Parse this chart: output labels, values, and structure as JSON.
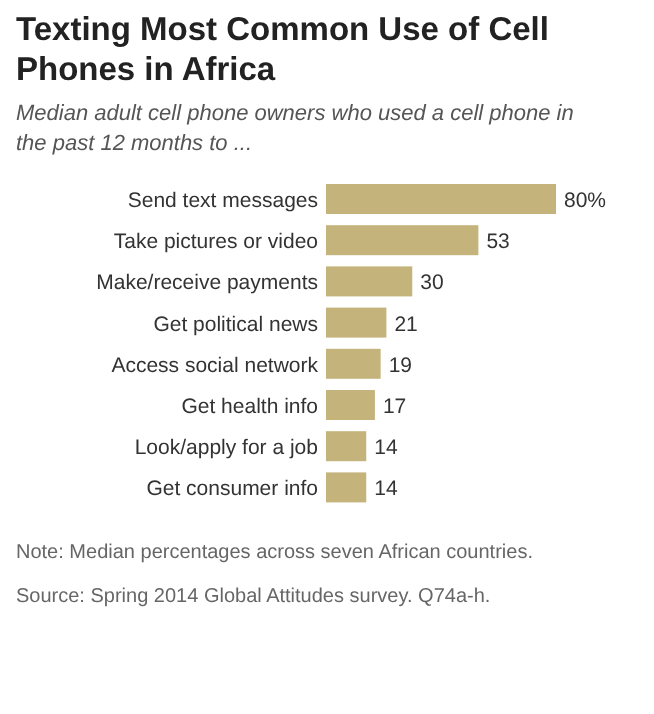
{
  "chart_data": {
    "type": "bar",
    "orientation": "horizontal",
    "title": "Texting Most Common Use of Cell Phones in Africa",
    "subtitle": "Median adult cell phone owners who used a cell phone in the past 12 months to ...",
    "categories": [
      "Send text messages",
      "Take pictures or video",
      "Make/receive payments",
      "Get political news",
      "Access social network",
      "Get health info",
      "Look/apply for a job",
      "Get consumer info"
    ],
    "values": [
      80,
      53,
      30,
      21,
      19,
      17,
      14,
      14
    ],
    "value_labels": [
      "80%",
      "53",
      "30",
      "21",
      "19",
      "17",
      "14",
      "14"
    ],
    "color": "#c4b47c",
    "xlim": [
      0,
      80
    ],
    "tick_labels": "y",
    "annotations": [
      "Note: Median percentages across seven African countries.",
      "Source: Spring 2014 Global Attitudes survey. Q74a-h."
    ]
  }
}
